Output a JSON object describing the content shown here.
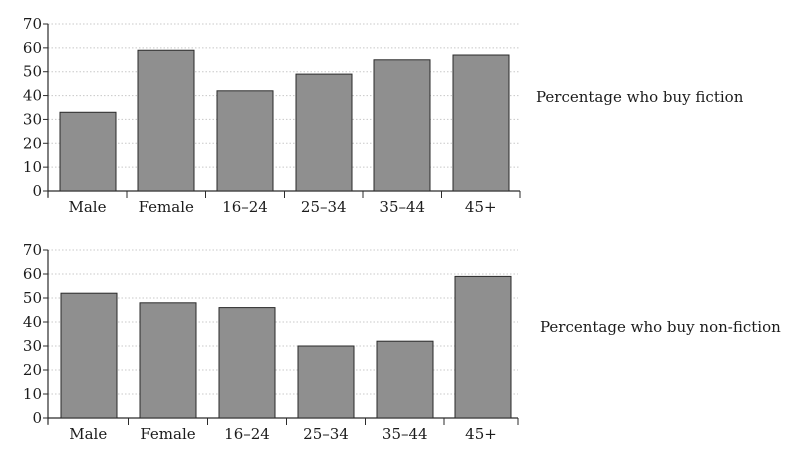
{
  "chart_data": [
    {
      "type": "bar",
      "title": "Percentage who buy fiction",
      "categories": [
        "Male",
        "Female",
        "16–24",
        "25–34",
        "35–44",
        "45+"
      ],
      "values": [
        33,
        59,
        42,
        49,
        55,
        57
      ],
      "ylim": [
        0,
        70
      ],
      "yticks": [
        0,
        10,
        20,
        30,
        40,
        50,
        60,
        70
      ],
      "grid": true,
      "bar_color": "#8f8f8f"
    },
    {
      "type": "bar",
      "title": "Percentage who buy non-fiction",
      "categories": [
        "Male",
        "Female",
        "16–24",
        "25–34",
        "35–44",
        "45+"
      ],
      "values": [
        52,
        48,
        46,
        30,
        32,
        59
      ],
      "ylim": [
        0,
        70
      ],
      "yticks": [
        0,
        10,
        20,
        30,
        40,
        50,
        60,
        70
      ],
      "grid": true,
      "bar_color": "#8f8f8f"
    }
  ]
}
